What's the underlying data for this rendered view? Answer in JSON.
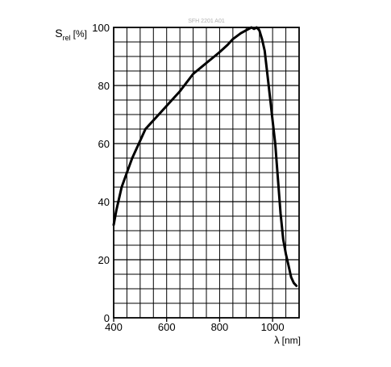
{
  "chart_data": {
    "type": "line",
    "id_text": "SFH 2201 A01",
    "ylabel": {
      "main": "S",
      "sub": "rel",
      "unit": "[%]"
    },
    "xlabel": {
      "main": "λ",
      "unit": "[nm]"
    },
    "xlim": [
      400,
      1100
    ],
    "ylim": [
      0,
      100
    ],
    "x_ticks": [
      400,
      600,
      800,
      1000
    ],
    "y_ticks": [
      0,
      20,
      40,
      60,
      80,
      100
    ],
    "x_grid_step": 50,
    "y_grid_step": 5,
    "grid": true,
    "line_color": "#000000",
    "grid_color": "#000000",
    "series": [
      {
        "x": [
          400,
          410,
          420,
          430,
          450,
          470,
          500,
          520,
          540,
          560,
          600,
          650,
          700,
          740,
          780,
          800,
          830,
          850,
          880,
          900,
          920,
          930,
          940,
          950,
          960,
          970,
          980,
          990,
          1000,
          1010,
          1020,
          1030,
          1040,
          1050,
          1060,
          1070,
          1080,
          1090
        ],
        "y": [
          32,
          37,
          41,
          45,
          50,
          55,
          61,
          65,
          67,
          69,
          73,
          78,
          84,
          87,
          90,
          91.5,
          94,
          96,
          98,
          99,
          100,
          99.5,
          100,
          99,
          96,
          92,
          84,
          76,
          68,
          60,
          48,
          36,
          27,
          22,
          18,
          14,
          12,
          11
        ]
      }
    ]
  }
}
